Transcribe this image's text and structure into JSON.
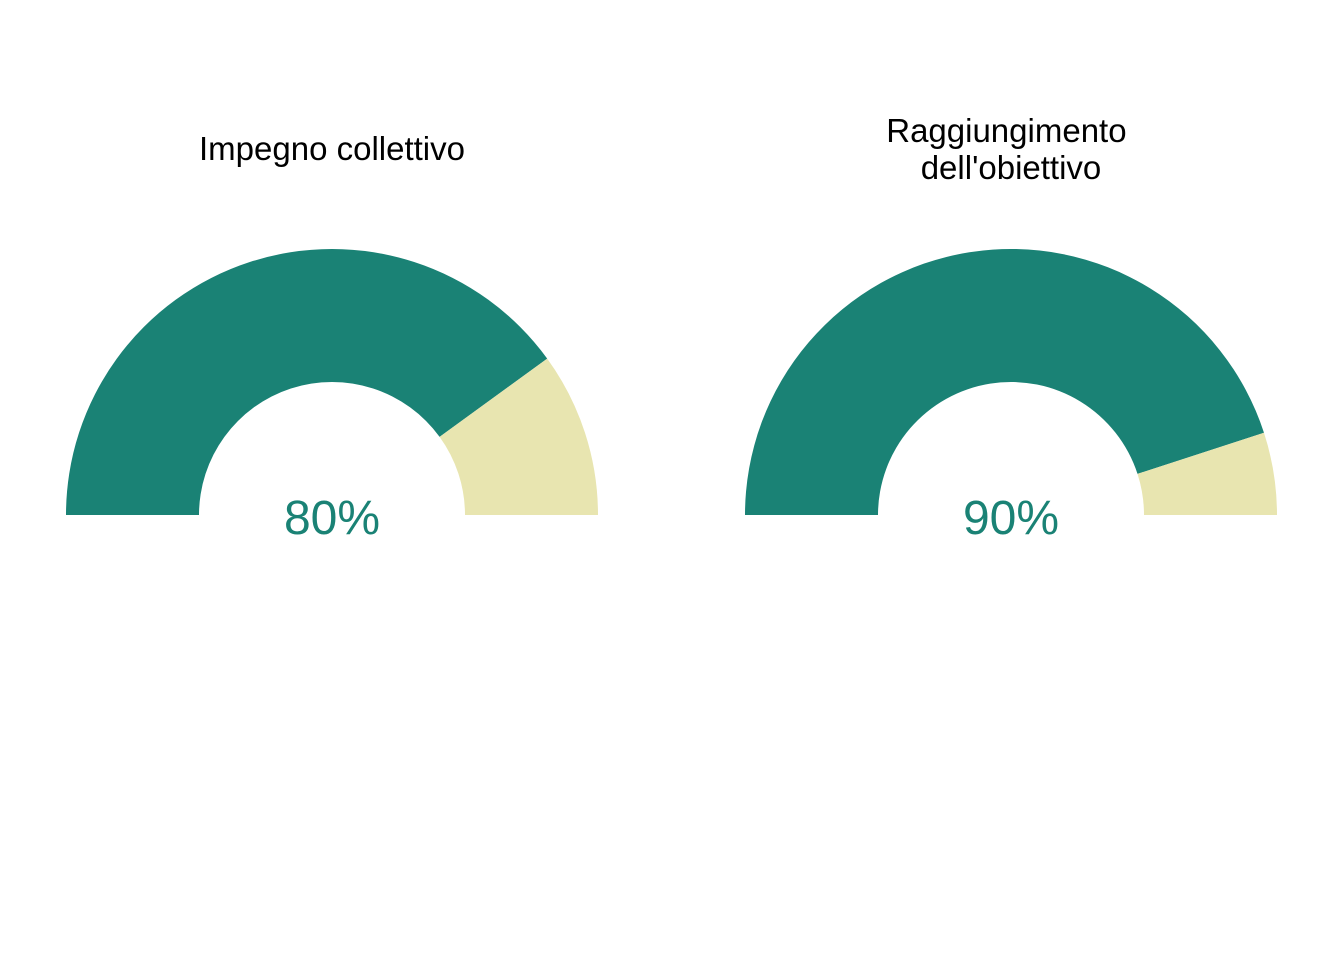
{
  "colors": {
    "fill": "#1A8275",
    "remainder": "#E8E5B0",
    "value_text": "#1A8275",
    "title_text": "#000000",
    "background": "#FFFFFF"
  },
  "chart_data": [
    {
      "type": "gauge",
      "title_lines": [
        "Impegno collettivo"
      ],
      "value": 80,
      "value_label": "80%",
      "range": [
        0,
        100
      ]
    },
    {
      "type": "gauge",
      "title_lines": [
        "Raggiungimento",
        "dell'obiettivo"
      ],
      "value": 90,
      "value_label": "90%",
      "range": [
        0,
        100
      ]
    }
  ]
}
